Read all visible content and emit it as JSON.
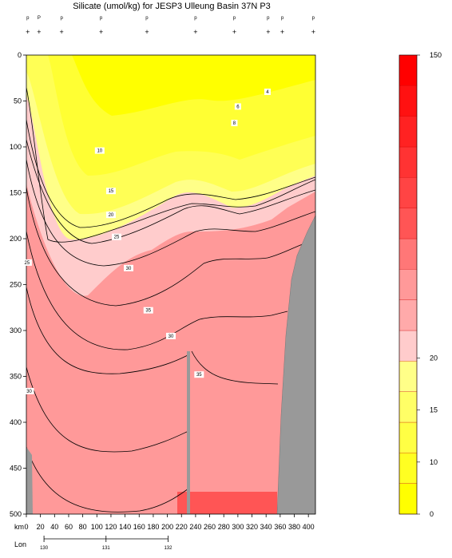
{
  "chart_data": {
    "type": "heatmap",
    "title": "Silicate (umol/kg) for JESP3 Ulleung Basin 37N P3",
    "xlabel": "km",
    "lon_label": "Lon",
    "xlim": [
      0,
      410
    ],
    "ylim": [
      0,
      500
    ],
    "x_ticks": [
      0,
      20,
      40,
      60,
      80,
      100,
      120,
      140,
      160,
      180,
      200,
      220,
      240,
      260,
      280,
      300,
      320,
      340,
      360,
      380,
      400
    ],
    "y_ticks": [
      0,
      50,
      100,
      150,
      200,
      250,
      300,
      350,
      400,
      450,
      500
    ],
    "lon_ticks": [
      {
        "label": "130",
        "km": 25
      },
      {
        "label": "131",
        "km": 113
      },
      {
        "label": "132",
        "km": 201
      }
    ],
    "stations": [
      {
        "km": 2,
        "label": "p"
      },
      {
        "km": 18,
        "label": "P"
      },
      {
        "km": 50,
        "label": "p"
      },
      {
        "km": 106,
        "label": "p"
      },
      {
        "km": 171,
        "label": "p"
      },
      {
        "km": 240,
        "label": "p"
      },
      {
        "km": 295,
        "label": "p"
      },
      {
        "km": 343,
        "label": "p"
      },
      {
        "km": 363,
        "label": "p"
      },
      {
        "km": 407,
        "label": "p"
      }
    ],
    "contour_levels": [
      4,
      6,
      8,
      10,
      15,
      20,
      25,
      30,
      35
    ],
    "contour_labels": [
      {
        "text": "4",
        "km": 342,
        "depth": 40
      },
      {
        "text": "6",
        "km": 300,
        "depth": 56
      },
      {
        "text": "8",
        "km": 295,
        "depth": 74
      },
      {
        "text": "10",
        "km": 104,
        "depth": 104
      },
      {
        "text": "15",
        "km": 120,
        "depth": 148
      },
      {
        "text": "20",
        "km": 120,
        "depth": 174
      },
      {
        "text": "25",
        "km": 128,
        "depth": 198
      },
      {
        "text": "30",
        "km": 145,
        "depth": 232
      },
      {
        "text": "35",
        "km": 173,
        "depth": 278
      },
      {
        "text": "30",
        "km": 205,
        "depth": 306
      },
      {
        "text": "35",
        "km": 245,
        "depth": 348
      },
      {
        "text": "30",
        "km": 4,
        "depth": 366
      },
      {
        "text": "25",
        "km": 1,
        "depth": 226
      }
    ],
    "colorbar": {
      "min_label": "0",
      "max_label": "150",
      "tick_labels": [
        "10",
        "15",
        "20"
      ],
      "colors_low_to_high": [
        "#ffff00",
        "#ffff22",
        "#ffff44",
        "#ffff66",
        "#ffff88",
        "#ffcccc",
        "#ffaaaa",
        "#ff9999",
        "#ff7777",
        "#ff5555",
        "#ff4444",
        "#ff3333",
        "#ff2222",
        "#ff1111",
        "#ff0000"
      ]
    }
  }
}
